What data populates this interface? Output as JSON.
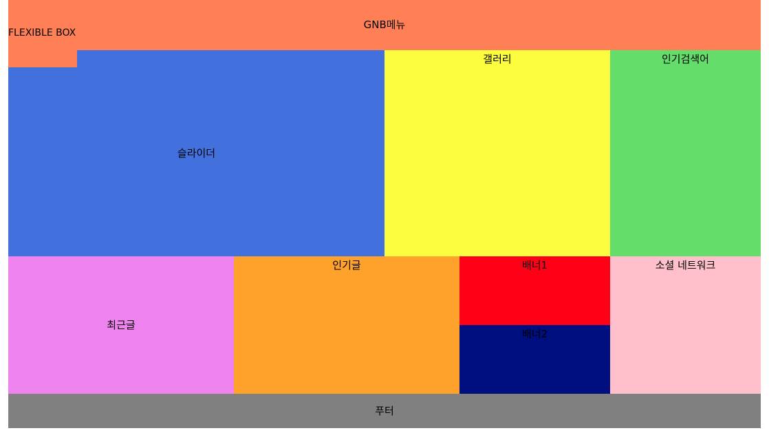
{
  "gnb": {
    "label": "GNB메뉴",
    "color": "#ff7f56"
  },
  "flexible_box": {
    "label": "FLEXIBLE BOX",
    "color": "#ff7f56"
  },
  "slider": {
    "label": "슬라이더",
    "color": "#4270dd"
  },
  "gallery": {
    "label": "갤러리",
    "color": "#fdfd3f"
  },
  "popular_search": {
    "label": "인기검색어",
    "color": "#64dd6a"
  },
  "recent_posts": {
    "label": "최근글",
    "color": "#ee82ee"
  },
  "popular_posts": {
    "label": "인기글",
    "color": "#fea22c"
  },
  "banner1": {
    "label": "배너1",
    "color": "#ff0016"
  },
  "banner2": {
    "label": "배너2",
    "color": "#000f80"
  },
  "social_network": {
    "label": "소셜 네트워크",
    "color": "#ffc0cb"
  },
  "footer": {
    "label": "푸터",
    "color": "#808080"
  }
}
